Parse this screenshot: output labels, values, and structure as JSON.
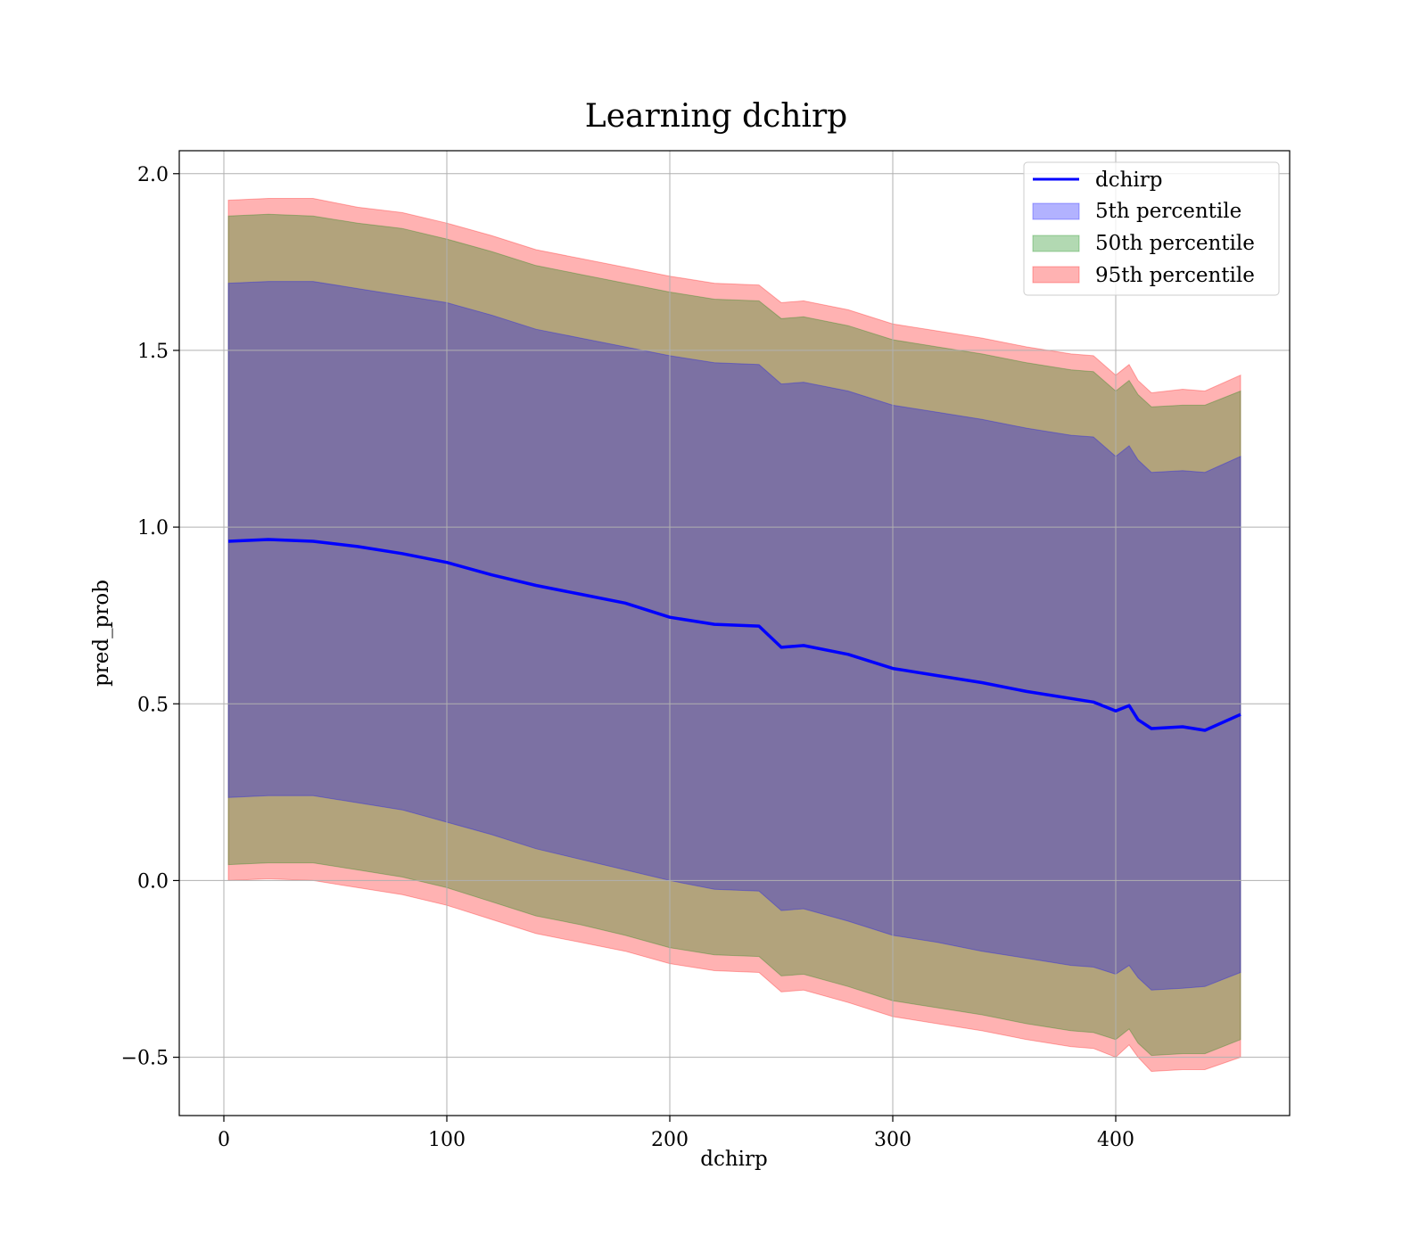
{
  "chart_data": {
    "type": "line",
    "title": "Learning dchirp",
    "xlabel": "dchirp",
    "ylabel": "pred_prob",
    "xlim": [
      -20,
      478
    ],
    "ylim": [
      -0.665,
      2.065
    ],
    "xticks": [
      0,
      100,
      200,
      300,
      400
    ],
    "xtick_labels": [
      "0",
      "100",
      "200",
      "300",
      "400"
    ],
    "yticks": [
      -0.5,
      0.0,
      0.5,
      1.0,
      1.5,
      2.0
    ],
    "ytick_labels": [
      "−0.5",
      "0.0",
      "0.5",
      "1.0",
      "1.5",
      "2.0"
    ],
    "grid": true,
    "legend_position": "top-right",
    "colors": {
      "line": "#0000ff",
      "p5": "#0000ff",
      "p50": "#008000",
      "p95": "#ff0000"
    },
    "x": [
      2,
      20,
      40,
      60,
      80,
      100,
      120,
      140,
      160,
      180,
      200,
      220,
      240,
      250,
      260,
      280,
      300,
      320,
      340,
      360,
      380,
      390,
      400,
      406,
      410,
      416,
      430,
      440,
      456
    ],
    "series": [
      {
        "name": "dchirp",
        "kind": "line",
        "values": [
          0.96,
          0.965,
          0.96,
          0.945,
          0.925,
          0.9,
          0.865,
          0.835,
          0.81,
          0.785,
          0.745,
          0.725,
          0.72,
          0.66,
          0.665,
          0.64,
          0.6,
          0.58,
          0.56,
          0.535,
          0.515,
          0.505,
          0.48,
          0.495,
          0.455,
          0.43,
          0.435,
          0.425,
          0.47
        ]
      },
      {
        "name": "5th percentile",
        "kind": "band",
        "lower": [
          0.235,
          0.24,
          0.24,
          0.22,
          0.2,
          0.165,
          0.13,
          0.09,
          0.06,
          0.03,
          0.0,
          -0.025,
          -0.03,
          -0.085,
          -0.08,
          -0.115,
          -0.155,
          -0.175,
          -0.2,
          -0.22,
          -0.24,
          -0.245,
          -0.265,
          -0.24,
          -0.275,
          -0.31,
          -0.305,
          -0.3,
          -0.26
        ],
        "upper": [
          1.69,
          1.695,
          1.695,
          1.675,
          1.655,
          1.635,
          1.6,
          1.56,
          1.535,
          1.51,
          1.485,
          1.465,
          1.46,
          1.405,
          1.41,
          1.385,
          1.345,
          1.325,
          1.305,
          1.28,
          1.26,
          1.255,
          1.2,
          1.23,
          1.19,
          1.155,
          1.16,
          1.155,
          1.2
        ]
      },
      {
        "name": "50th percentile",
        "kind": "band",
        "lower": [
          0.045,
          0.05,
          0.05,
          0.03,
          0.01,
          -0.02,
          -0.06,
          -0.1,
          -0.125,
          -0.155,
          -0.19,
          -0.21,
          -0.215,
          -0.27,
          -0.265,
          -0.3,
          -0.34,
          -0.36,
          -0.38,
          -0.405,
          -0.425,
          -0.43,
          -0.45,
          -0.42,
          -0.46,
          -0.495,
          -0.49,
          -0.49,
          -0.45
        ],
        "upper": [
          1.88,
          1.885,
          1.88,
          1.86,
          1.845,
          1.815,
          1.78,
          1.74,
          1.715,
          1.69,
          1.665,
          1.645,
          1.64,
          1.59,
          1.595,
          1.57,
          1.53,
          1.51,
          1.49,
          1.465,
          1.445,
          1.44,
          1.385,
          1.415,
          1.375,
          1.34,
          1.345,
          1.345,
          1.385
        ]
      },
      {
        "name": "95th percentile",
        "kind": "band",
        "lower": [
          0.0,
          0.005,
          0.0,
          -0.02,
          -0.04,
          -0.07,
          -0.11,
          -0.15,
          -0.175,
          -0.2,
          -0.235,
          -0.255,
          -0.26,
          -0.315,
          -0.31,
          -0.345,
          -0.385,
          -0.405,
          -0.425,
          -0.45,
          -0.47,
          -0.475,
          -0.5,
          -0.465,
          -0.5,
          -0.54,
          -0.535,
          -0.535,
          -0.5
        ],
        "upper": [
          1.925,
          1.93,
          1.93,
          1.905,
          1.89,
          1.86,
          1.825,
          1.785,
          1.76,
          1.735,
          1.71,
          1.69,
          1.685,
          1.635,
          1.64,
          1.615,
          1.575,
          1.555,
          1.535,
          1.51,
          1.49,
          1.485,
          1.43,
          1.46,
          1.415,
          1.38,
          1.39,
          1.385,
          1.43
        ]
      }
    ]
  }
}
